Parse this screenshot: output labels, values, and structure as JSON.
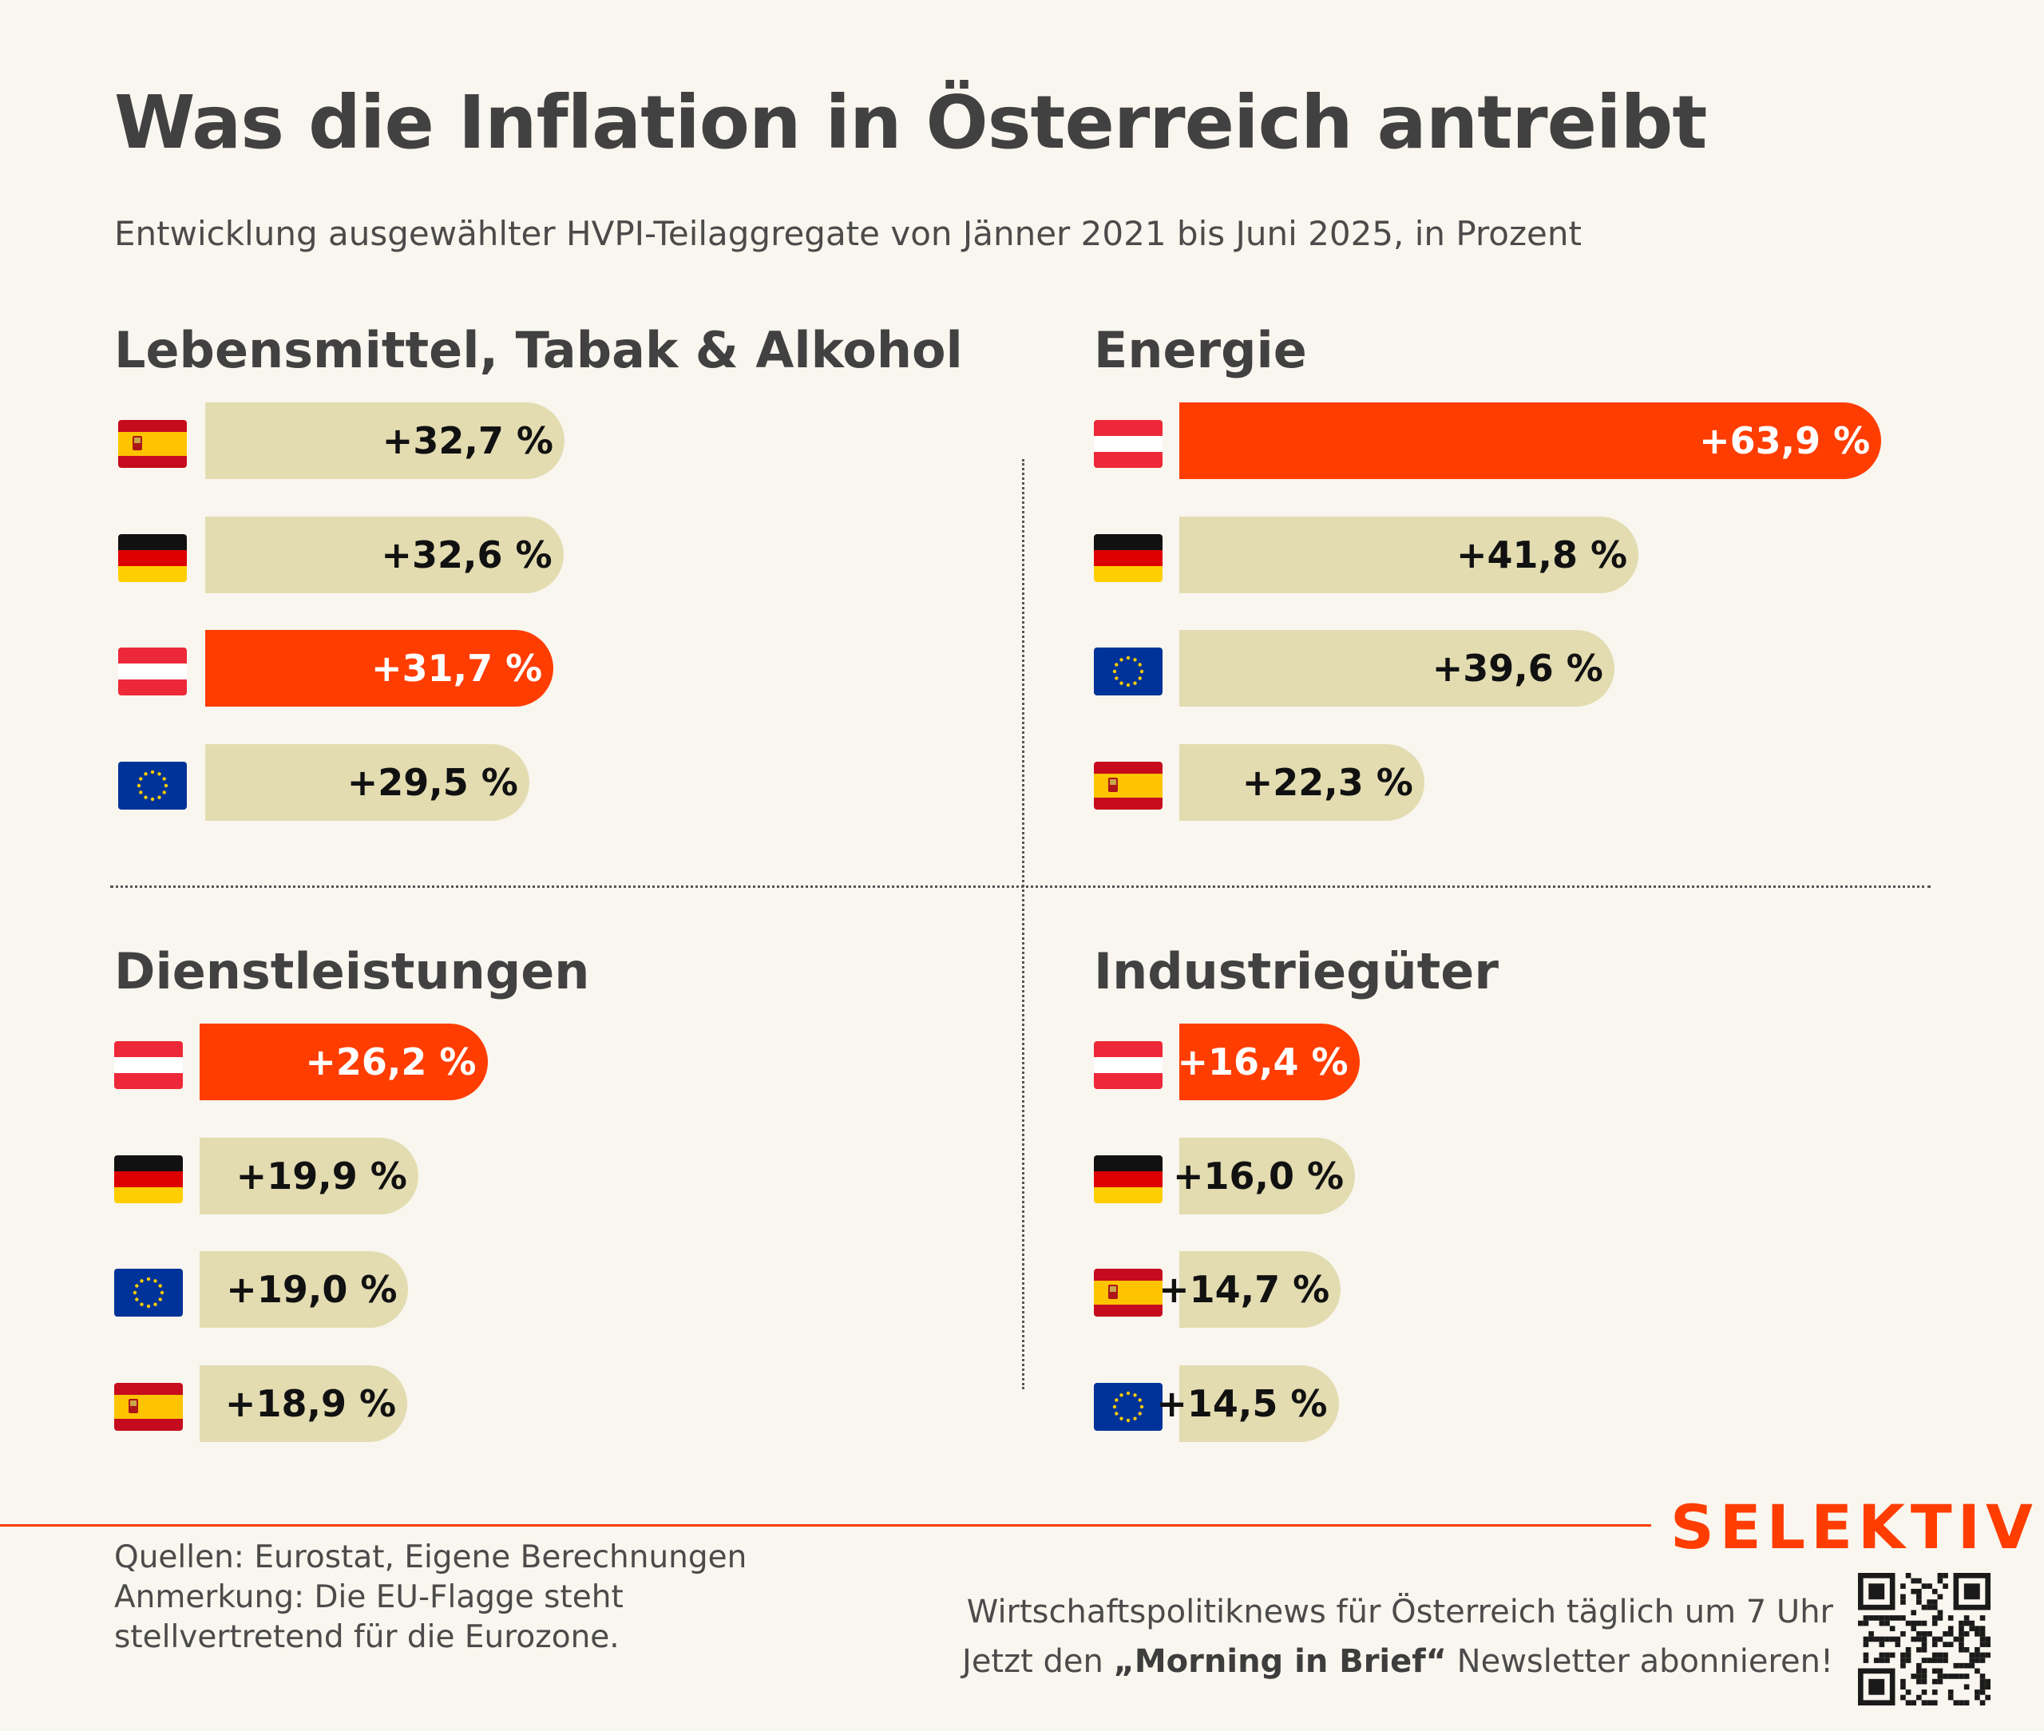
{
  "title": "Was die Inflation in Österreich antreibt",
  "subtitle": "Entwicklung ausgewählter HVPI-Teilaggregate von Jänner 2021 bis Juni 2025, in Prozent",
  "colors": {
    "highlight": "#ff3d00",
    "bar": "#e3dcb1",
    "background": "#f8f6ee",
    "brand": "#ff3d00"
  },
  "chart_data": [
    {
      "type": "bar",
      "title": "Lebensmittel, Tabak & Alkohol",
      "categories": [
        "es",
        "de",
        "at",
        "eu"
      ],
      "values": [
        32.7,
        32.6,
        31.7,
        29.5
      ],
      "labels": [
        "+32,7 %",
        "+32,6 %",
        "+31,7 %",
        "+29,5 %"
      ],
      "highlight": "at"
    },
    {
      "type": "bar",
      "title": "Energie",
      "categories": [
        "at",
        "de",
        "eu",
        "es"
      ],
      "values": [
        63.9,
        41.8,
        39.6,
        22.3
      ],
      "labels": [
        "+63,9 %",
        "+41,8 %",
        "+39,6 %",
        "+22,3 %"
      ],
      "highlight": "at"
    },
    {
      "type": "bar",
      "title": "Dienstleistungen",
      "categories": [
        "at",
        "de",
        "eu",
        "es"
      ],
      "values": [
        26.2,
        19.9,
        19.0,
        18.9
      ],
      "labels": [
        "+26,2 %",
        "+19,9 %",
        "+19,0 %",
        "+18,9 %"
      ],
      "highlight": "at"
    },
    {
      "type": "bar",
      "title": "Industriegüter",
      "categories": [
        "at",
        "de",
        "es",
        "eu"
      ],
      "values": [
        16.4,
        16.0,
        14.7,
        14.5
      ],
      "labels": [
        "+16,4 %",
        "+16,0 %",
        "+14,7 %",
        "+14,5 %"
      ],
      "highlight": "at"
    }
  ],
  "footer": {
    "sources": "Quellen: Eurostat, Eigene Berechnungen",
    "note_line1": "Anmerkung: Die EU-Flagge steht",
    "note_line2": "stellvertretend für die Eurozone.",
    "brand": "SELEKTIV",
    "promo_line1": "Wirtschaftspolitiknews für Österreich täglich um 7 Uhr",
    "promo_pre": "Jetzt den ",
    "promo_bold": "„Morning in Brief“",
    "promo_post": " Newsletter abonnieren!"
  }
}
